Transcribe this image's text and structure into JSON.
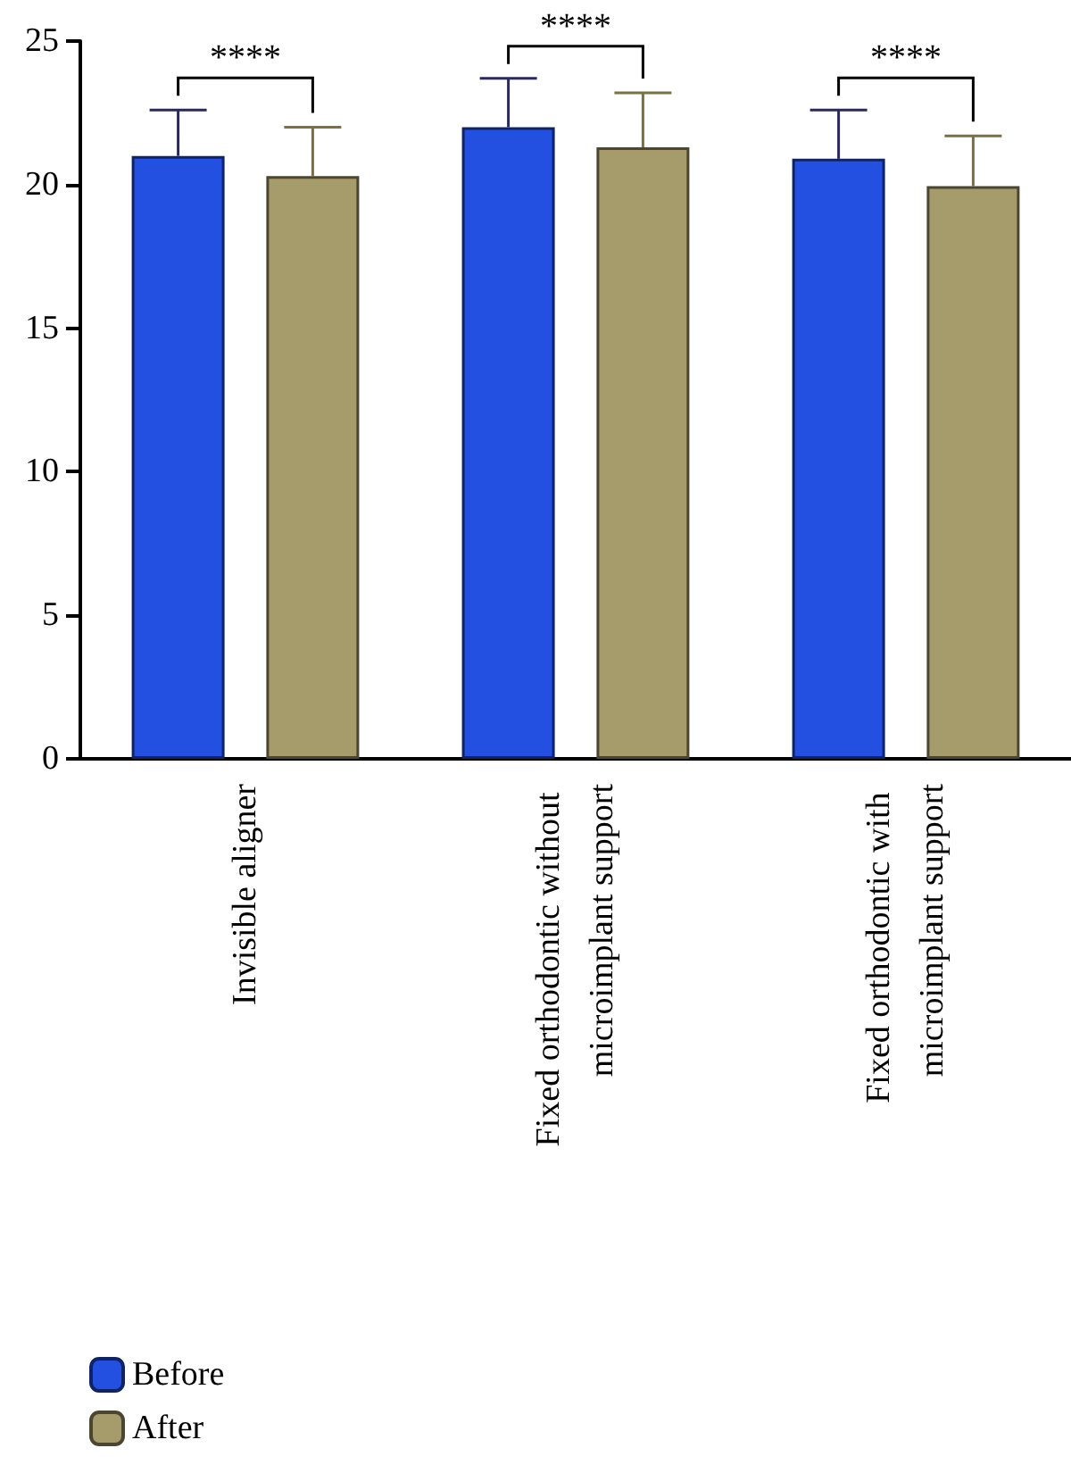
{
  "chart_data": {
    "type": "bar",
    "categories": [
      "Invisible aligner",
      "Fixed orthodontic without microimplant support",
      "Fixed orthodontic with microimplant support"
    ],
    "series": [
      {
        "name": "Before",
        "color": "#2350e0",
        "values": [
          21.0,
          22.0,
          20.9
        ],
        "errors": [
          [
            21.0,
            22.6
          ],
          [
            22.0,
            23.7
          ],
          [
            20.9,
            22.6
          ]
        ]
      },
      {
        "name": "After",
        "color": "#a69b6a",
        "values": [
          20.3,
          21.3,
          19.95
        ],
        "errors": [
          [
            20.3,
            22.0
          ],
          [
            21.3,
            23.2
          ],
          [
            19.95,
            21.7
          ]
        ]
      }
    ],
    "annotations": [
      "****",
      "****",
      "****"
    ],
    "ylim": [
      0,
      25
    ],
    "yticks": [
      0,
      5,
      10,
      15,
      20,
      25
    ],
    "grid": false,
    "legend": "bottom left"
  }
}
